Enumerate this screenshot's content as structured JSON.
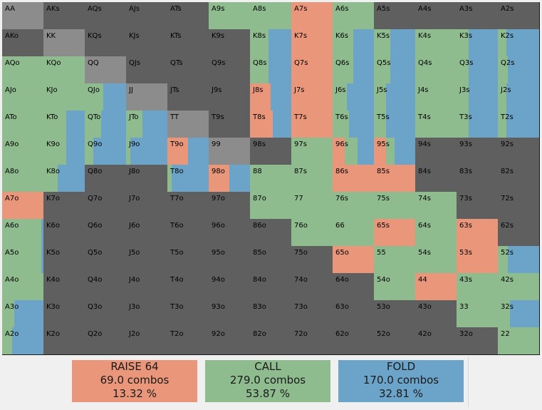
{
  "colors": {
    "raise": "#e9967a",
    "call": "#8fbc8f",
    "fold": "#6ca4c9",
    "none": "#5f5f5f",
    "pair_none": "#8c8c8c"
  },
  "grid": {
    "ranks": [
      "A",
      "K",
      "Q",
      "J",
      "T",
      "9",
      "8",
      "7",
      "6",
      "5",
      "4",
      "3",
      "2"
    ],
    "cells": [
      [
        "n",
        "n",
        "n",
        "n",
        "n",
        "c",
        "c",
        "r",
        "c",
        "n",
        "n",
        "n",
        "n"
      ],
      [
        "n",
        "n",
        "n",
        "n",
        "n",
        "n",
        "c:0.45",
        "r",
        "c:0.5",
        "c:0.4",
        "c",
        "c:0.3",
        "c:0.2"
      ],
      [
        "c",
        "c",
        "n",
        "n",
        "n",
        "n",
        "c:0.45",
        "r",
        "c:0.5",
        "c:0.4",
        "c",
        "c:0.3",
        "c:0.25"
      ],
      [
        "c",
        "c",
        "c:0.45",
        "n",
        "n",
        "n",
        "r:0.5",
        "r",
        "c:0.35",
        "c:0.3",
        "c",
        "c:0.3",
        "c:0.2"
      ],
      [
        "c",
        "c:0.55",
        "c:0.4",
        "c:0.4",
        "n",
        "n",
        "r:0.55",
        "r",
        "c:0.4",
        "c:0.3",
        "c",
        "c:0.3",
        "c:0.2"
      ],
      [
        "c",
        "c:0.55",
        "c:0.2",
        "c:0.1",
        "r:0.5",
        "n",
        "n",
        "c",
        "r:0.3|c:0.3",
        "r:0.3|c:0.2",
        "n",
        "n",
        "n"
      ],
      [
        "c",
        "c:0.35",
        "n",
        "n",
        "c:0.1",
        "r:0.5",
        "c",
        "c",
        "r",
        "r",
        "n",
        "n",
        "n"
      ],
      [
        "r",
        "n",
        "n",
        "n",
        "n",
        "n",
        "c",
        "c",
        "c",
        "c",
        "c",
        "n",
        "n"
      ],
      [
        "c:0.95",
        "n",
        "n",
        "n",
        "n",
        "n",
        "n",
        "c",
        "c",
        "r",
        "c",
        "r",
        "n"
      ],
      [
        "c:0.95",
        "n",
        "n",
        "n",
        "n",
        "n",
        "n",
        "n",
        "r",
        "c",
        "c",
        "r",
        "c:0.25"
      ],
      [
        "c",
        "n",
        "n",
        "n",
        "n",
        "n",
        "n",
        "n",
        "n",
        "c",
        "r",
        "c",
        "c"
      ],
      [
        "c:0.3",
        "n",
        "n",
        "n",
        "n",
        "n",
        "n",
        "n",
        "n",
        "n",
        "n",
        "c",
        "c:0.3"
      ],
      [
        "c:0.25",
        "n",
        "n",
        "n",
        "n",
        "n",
        "n",
        "n",
        "n",
        "n",
        "n",
        "n",
        "c"
      ]
    ]
  },
  "legend": {
    "raise": {
      "label": "RAISE 64",
      "combos": "69.0 combos",
      "percent": "13.32 %"
    },
    "call": {
      "label": "CALL",
      "combos": "279.0 combos",
      "percent": "53.87 %"
    },
    "fold": {
      "label": "FOLD",
      "combos": "170.0 combos",
      "percent": "32.81 %"
    }
  }
}
